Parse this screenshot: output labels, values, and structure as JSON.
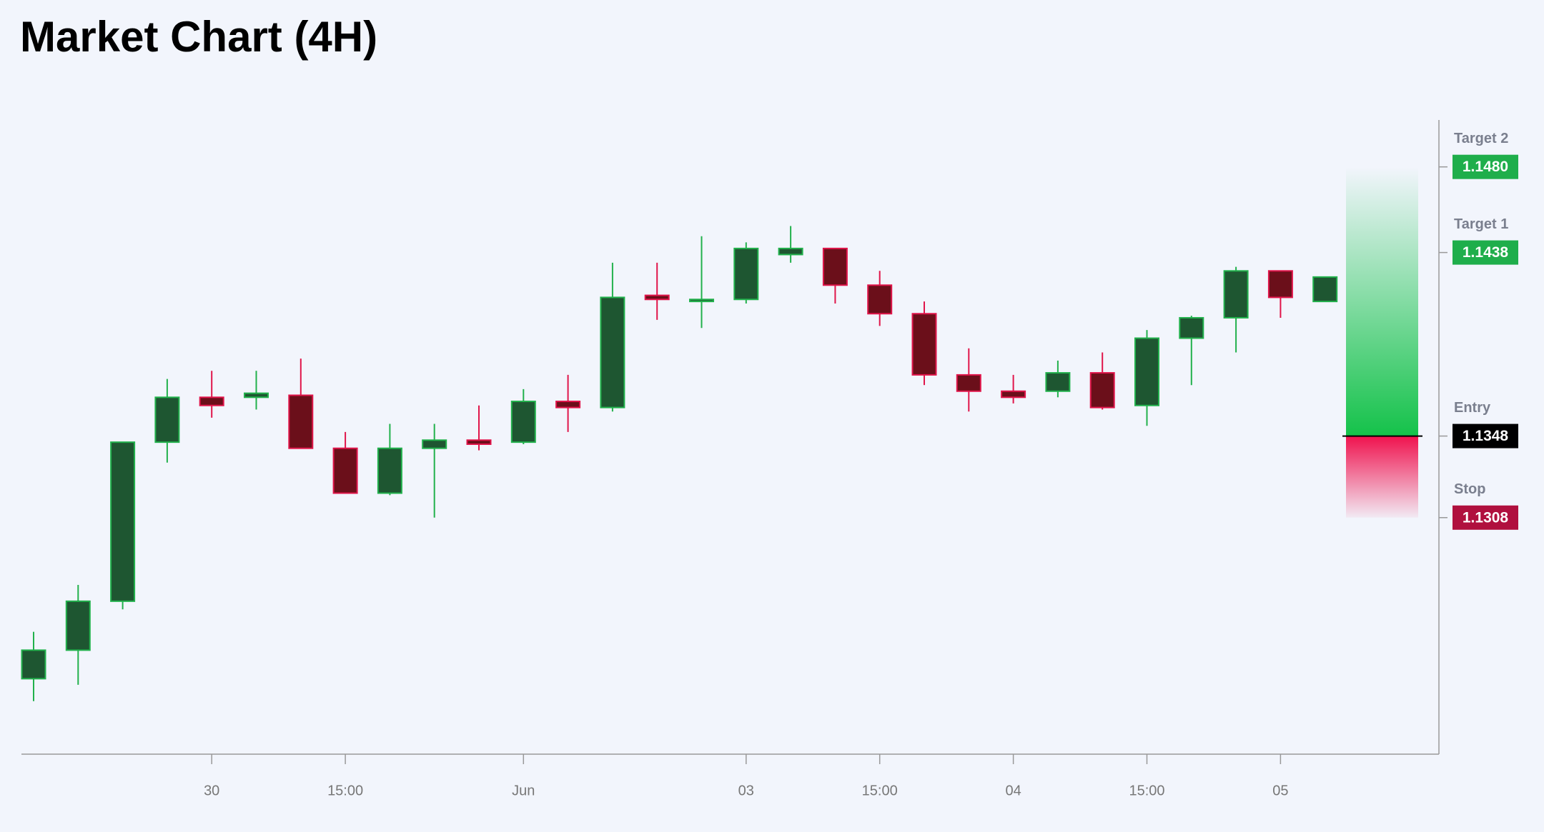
{
  "chart_data": {
    "type": "candlestick",
    "title": "Market Chart (4H)",
    "categories": [
      null,
      null,
      null,
      null,
      "30",
      null,
      null,
      "15:00",
      null,
      null,
      null,
      "Jun",
      null,
      null,
      null,
      null,
      "03",
      null,
      null,
      "15:00",
      null,
      null,
      "04",
      null,
      null,
      "15:00",
      null,
      null,
      "05",
      null
    ],
    "open": [
      1.1229,
      1.1243,
      1.1267,
      1.1345,
      1.1367,
      1.1367,
      1.1368,
      1.1342,
      1.132,
      1.1342,
      1.1346,
      1.1345,
      1.1365,
      1.1362,
      1.1417,
      1.1414,
      1.1415,
      1.1437,
      1.144,
      1.1422,
      1.1408,
      1.1378,
      1.137,
      1.137,
      1.1379,
      1.1363,
      1.1396,
      1.1406,
      1.1429,
      1.1414
    ],
    "high": [
      1.1252,
      1.1275,
      1.1345,
      1.1376,
      1.138,
      1.138,
      1.1386,
      1.135,
      1.1354,
      1.1354,
      1.1363,
      1.1371,
      1.1378,
      1.1433,
      1.1433,
      1.1446,
      1.1443,
      1.1451,
      1.144,
      1.1429,
      1.1414,
      1.1391,
      1.1378,
      1.1385,
      1.1389,
      1.14,
      1.1407,
      1.1431,
      1.1429,
      1.1426
    ],
    "low": [
      1.1218,
      1.1226,
      1.1263,
      1.1335,
      1.1357,
      1.1361,
      1.1342,
      1.132,
      1.1319,
      1.1308,
      1.1341,
      1.1344,
      1.135,
      1.136,
      1.1405,
      1.1401,
      1.1413,
      1.1433,
      1.1413,
      1.1402,
      1.1373,
      1.136,
      1.1364,
      1.1367,
      1.1361,
      1.1353,
      1.1373,
      1.1389,
      1.1406,
      1.1414
    ],
    "close": [
      1.1243,
      1.1267,
      1.1345,
      1.1367,
      1.1363,
      1.1369,
      1.1342,
      1.132,
      1.1342,
      1.1346,
      1.1344,
      1.1365,
      1.1362,
      1.1416,
      1.1415,
      1.1415,
      1.144,
      1.144,
      1.1422,
      1.1408,
      1.1378,
      1.137,
      1.1367,
      1.1379,
      1.1362,
      1.1396,
      1.1406,
      1.1429,
      1.1416,
      1.1426
    ],
    "up_color": "#22b14c",
    "up_fill": "#1e5631",
    "down_color": "#e0154a",
    "down_fill": "#6b0f1a",
    "ylim": [
      1.1192,
      1.1503
    ],
    "levels": [
      {
        "name": "Target 2",
        "value": 1.148,
        "label": "1.1480",
        "color": "#1fae4b"
      },
      {
        "name": "Target 1",
        "value": 1.1438,
        "label": "1.1438",
        "color": "#1fae4b"
      },
      {
        "name": "Entry",
        "value": 1.1348,
        "label": "1.1348",
        "color": "#000000"
      },
      {
        "name": "Stop",
        "value": 1.1308,
        "label": "1.1308",
        "color": "#b0103e"
      }
    ]
  }
}
